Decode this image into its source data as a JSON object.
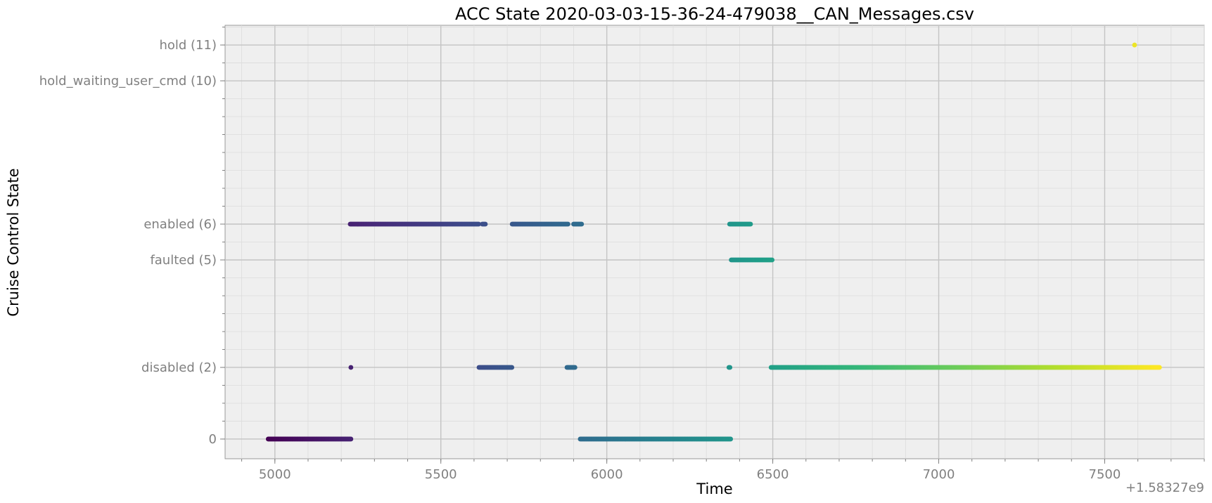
{
  "chart_data": {
    "type": "scatter",
    "title": "ACC State 2020-03-03-15-36-24-479038__CAN_Messages.csv",
    "xlabel": "Time",
    "ylabel": "Cruise Control State",
    "x_offset_label": "+1.58327e9",
    "xlim": [
      4850,
      7800
    ],
    "ylim": [
      -0.55,
      11.55
    ],
    "x_major_ticks": [
      {
        "value": 5000,
        "label": "5000"
      },
      {
        "value": 5500,
        "label": "5500"
      },
      {
        "value": 6000,
        "label": "6000"
      },
      {
        "value": 6500,
        "label": "6500"
      },
      {
        "value": 7000,
        "label": "7000"
      },
      {
        "value": 7500,
        "label": "7500"
      }
    ],
    "x_minor_step": 100,
    "y_ticks": [
      {
        "value": 0,
        "label": "0"
      },
      {
        "value": 2,
        "label": "disabled (2)"
      },
      {
        "value": 5,
        "label": "faulted (5)"
      },
      {
        "value": 6,
        "label": "enabled (6)"
      },
      {
        "value": 10,
        "label": "hold_waiting_user_cmd (10)"
      },
      {
        "value": 11,
        "label": "hold (11)"
      }
    ],
    "y_minor_step": 0.5,
    "grid": true,
    "colormap": "viridis",
    "color_range": [
      4980,
      7660
    ],
    "segments": [
      {
        "state": 0,
        "x_start": 4980,
        "x_end": 5230
      },
      {
        "state": 6,
        "x_start": 5227,
        "x_end": 5615
      },
      {
        "state": 6,
        "x_start": 5625,
        "x_end": 5635
      },
      {
        "state": 2,
        "x_start": 5229,
        "x_end": 5231
      },
      {
        "state": 2,
        "x_start": 5615,
        "x_end": 5715
      },
      {
        "state": 6,
        "x_start": 5715,
        "x_end": 5885
      },
      {
        "state": 2,
        "x_start": 5880,
        "x_end": 5905
      },
      {
        "state": 6,
        "x_start": 5900,
        "x_end": 5925
      },
      {
        "state": 0,
        "x_start": 5920,
        "x_end": 6375
      },
      {
        "state": 2,
        "x_start": 6368,
        "x_end": 6372
      },
      {
        "state": 6,
        "x_start": 6370,
        "x_end": 6435
      },
      {
        "state": 5,
        "x_start": 6375,
        "x_end": 6500
      },
      {
        "state": 2,
        "x_start": 6495,
        "x_end": 7665
      },
      {
        "state": 11,
        "x_start": 7590,
        "x_end": 7590
      }
    ]
  }
}
